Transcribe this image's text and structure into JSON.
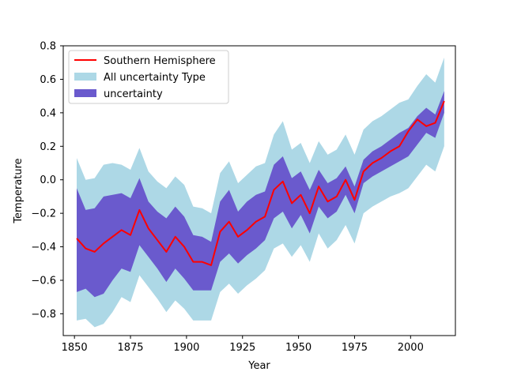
{
  "chart_data": {
    "type": "area",
    "xlabel": "Year",
    "ylabel": "Temperature",
    "xlim": [
      1845,
      2020
    ],
    "ylim": [
      -0.93,
      0.8
    ],
    "x_ticks": [
      1850,
      1875,
      1900,
      1925,
      1950,
      1975,
      2000
    ],
    "y_ticks": [
      -0.8,
      -0.6,
      -0.4,
      -0.2,
      0.0,
      0.2,
      0.4,
      0.6,
      0.8
    ],
    "x_tick_labels": [
      "1850",
      "1875",
      "1900",
      "1925",
      "1950",
      "1975",
      "2000"
    ],
    "y_tick_labels": [
      "−0.8",
      "−0.6",
      "−0.4",
      "−0.2",
      "0.0",
      "0.2",
      "0.4",
      "0.6",
      "0.8"
    ],
    "legend_position": "top-left",
    "grid": false,
    "x": [
      1851,
      1855,
      1859,
      1863,
      1867,
      1871,
      1875,
      1879,
      1883,
      1887,
      1891,
      1895,
      1899,
      1903,
      1907,
      1911,
      1915,
      1919,
      1923,
      1927,
      1931,
      1935,
      1939,
      1943,
      1947,
      1951,
      1955,
      1959,
      1963,
      1967,
      1971,
      1975,
      1979,
      1983,
      1987,
      1991,
      1995,
      1999,
      2003,
      2007,
      2011,
      2015
    ],
    "series": [
      {
        "name": "Southern Hemisphere",
        "kind": "line",
        "color": "#ff0000",
        "values": [
          -0.35,
          -0.41,
          -0.43,
          -0.38,
          -0.34,
          -0.3,
          -0.33,
          -0.18,
          -0.29,
          -0.36,
          -0.43,
          -0.34,
          -0.4,
          -0.49,
          -0.49,
          -0.51,
          -0.31,
          -0.25,
          -0.34,
          -0.3,
          -0.25,
          -0.22,
          -0.06,
          -0.01,
          -0.14,
          -0.09,
          -0.2,
          -0.04,
          -0.13,
          -0.1,
          0.0,
          -0.12,
          0.05,
          0.1,
          0.13,
          0.17,
          0.2,
          0.29,
          0.36,
          0.32,
          0.34,
          0.47
        ]
      },
      {
        "name": "All uncertainty Type",
        "kind": "band",
        "color": "#add8e6",
        "lower": [
          -0.84,
          -0.83,
          -0.88,
          -0.86,
          -0.79,
          -0.7,
          -0.73,
          -0.57,
          -0.64,
          -0.71,
          -0.79,
          -0.72,
          -0.77,
          -0.84,
          -0.84,
          -0.84,
          -0.67,
          -0.62,
          -0.68,
          -0.63,
          -0.59,
          -0.54,
          -0.41,
          -0.38,
          -0.46,
          -0.39,
          -0.49,
          -0.32,
          -0.41,
          -0.36,
          -0.27,
          -0.38,
          -0.2,
          -0.16,
          -0.13,
          -0.1,
          -0.08,
          -0.05,
          0.02,
          0.09,
          0.05,
          0.2
        ],
        "upper": [
          0.13,
          0.0,
          0.01,
          0.09,
          0.1,
          0.09,
          0.06,
          0.19,
          0.05,
          -0.01,
          -0.05,
          0.02,
          -0.03,
          -0.16,
          -0.17,
          -0.2,
          0.04,
          0.11,
          -0.02,
          0.03,
          0.08,
          0.1,
          0.27,
          0.35,
          0.18,
          0.22,
          0.1,
          0.23,
          0.15,
          0.18,
          0.27,
          0.15,
          0.3,
          0.35,
          0.38,
          0.42,
          0.46,
          0.48,
          0.56,
          0.63,
          0.58,
          0.73
        ]
      },
      {
        "name": "uncertainty",
        "kind": "band",
        "color": "#6a5acd",
        "lower": [
          -0.67,
          -0.65,
          -0.7,
          -0.68,
          -0.6,
          -0.53,
          -0.55,
          -0.39,
          -0.46,
          -0.53,
          -0.61,
          -0.53,
          -0.59,
          -0.66,
          -0.66,
          -0.66,
          -0.49,
          -0.44,
          -0.5,
          -0.45,
          -0.41,
          -0.36,
          -0.23,
          -0.19,
          -0.29,
          -0.21,
          -0.32,
          -0.16,
          -0.23,
          -0.19,
          -0.09,
          -0.2,
          -0.02,
          0.02,
          0.05,
          0.08,
          0.11,
          0.14,
          0.21,
          0.28,
          0.25,
          0.4
        ],
        "upper": [
          -0.05,
          -0.18,
          -0.17,
          -0.1,
          -0.09,
          -0.08,
          -0.11,
          0.01,
          -0.13,
          -0.19,
          -0.23,
          -0.16,
          -0.22,
          -0.33,
          -0.34,
          -0.37,
          -0.13,
          -0.06,
          -0.19,
          -0.13,
          -0.09,
          -0.07,
          0.09,
          0.14,
          0.01,
          0.05,
          -0.06,
          0.06,
          -0.02,
          0.01,
          0.08,
          -0.04,
          0.12,
          0.17,
          0.2,
          0.24,
          0.28,
          0.31,
          0.38,
          0.43,
          0.39,
          0.53
        ]
      }
    ]
  }
}
